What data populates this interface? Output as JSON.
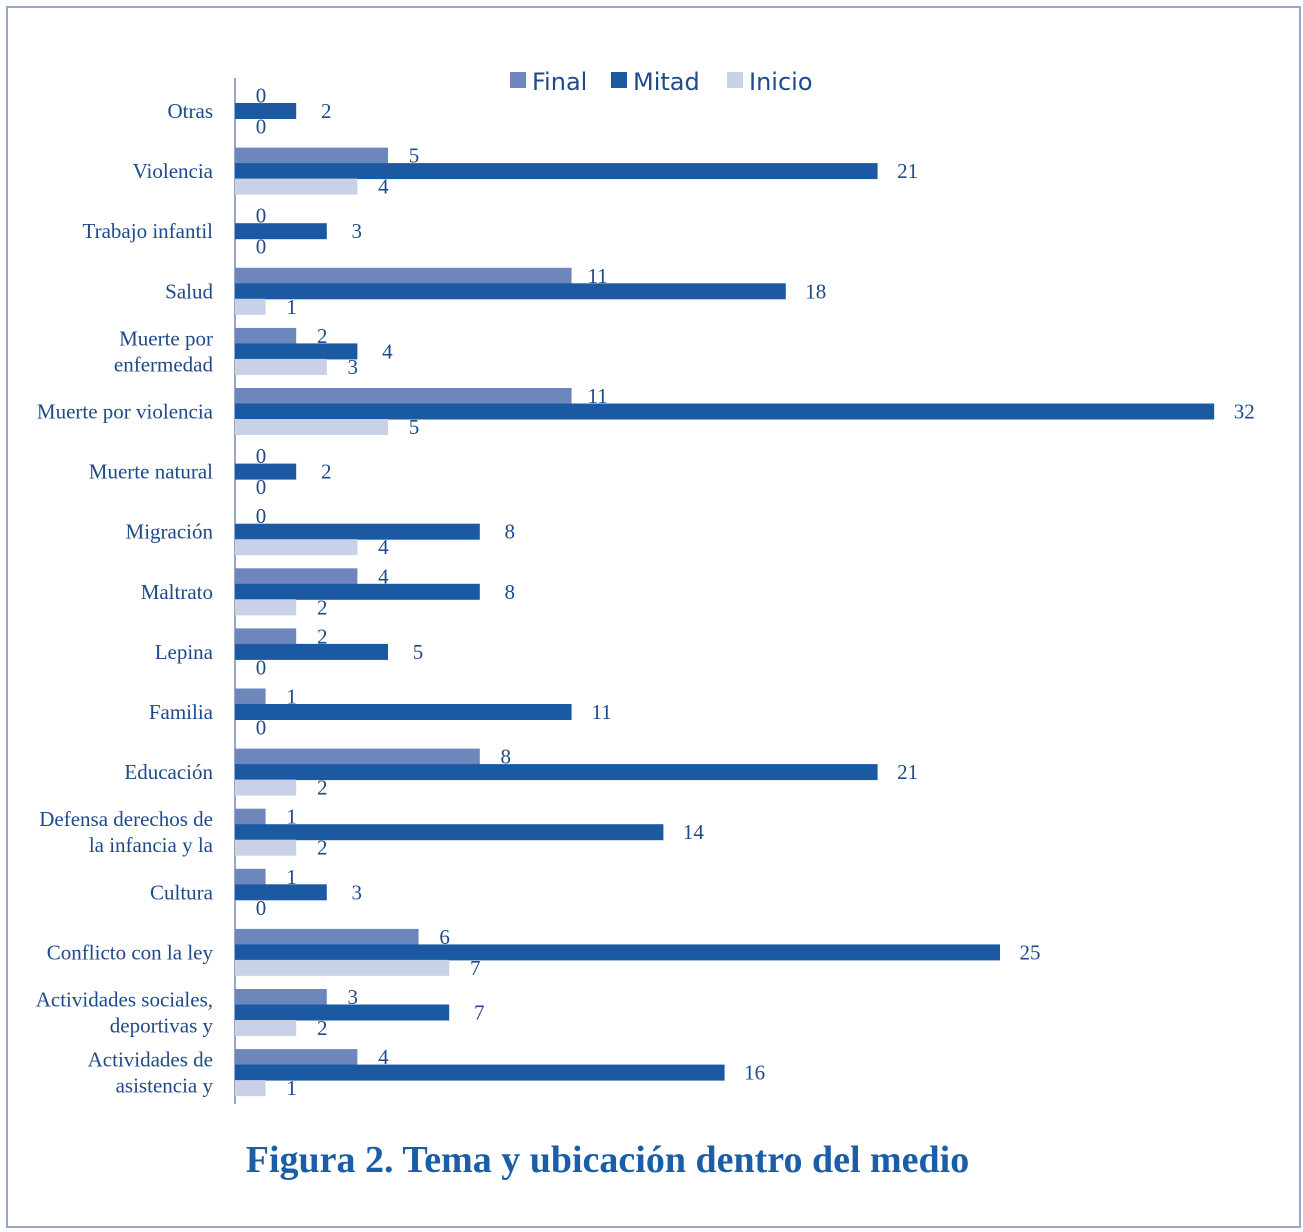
{
  "caption": "Figura 2. Tema y ubicación dentro del medio",
  "chart_data": {
    "type": "bar",
    "orientation": "horizontal",
    "categories": [
      [
        "Otras"
      ],
      [
        "Violencia"
      ],
      [
        "Trabajo infantil"
      ],
      [
        "Salud"
      ],
      [
        "Muerte por",
        "enfermedad"
      ],
      [
        "Muerte por violencia"
      ],
      [
        "Muerte natural"
      ],
      [
        "Migración"
      ],
      [
        "Maltrato"
      ],
      [
        "Lepina"
      ],
      [
        "Familia"
      ],
      [
        "Educación"
      ],
      [
        "Defensa derechos de",
        "la infancia y la"
      ],
      [
        "Cultura"
      ],
      [
        "Conflicto con la ley"
      ],
      [
        "Actividades sociales,",
        "deportivas y"
      ],
      [
        "Actividades de",
        "asistencia y"
      ]
    ],
    "series": [
      {
        "name": "Final",
        "color": "#6d87bd",
        "values": [
          0,
          5,
          0,
          11,
          2,
          11,
          0,
          0,
          4,
          2,
          1,
          8,
          1,
          1,
          6,
          3,
          4
        ]
      },
      {
        "name": "Mitad",
        "color": "#1b5aa3",
        "values": [
          2,
          21,
          3,
          18,
          4,
          32,
          2,
          8,
          8,
          5,
          11,
          21,
          14,
          3,
          25,
          7,
          16
        ]
      },
      {
        "name": "Inicio",
        "color": "#c9d1e8",
        "values": [
          0,
          4,
          0,
          1,
          3,
          5,
          0,
          4,
          2,
          0,
          0,
          2,
          2,
          0,
          7,
          2,
          1
        ]
      }
    ],
    "xlim": [
      0,
      32
    ],
    "grid": false,
    "legend": "top",
    "data_labels": true
  }
}
